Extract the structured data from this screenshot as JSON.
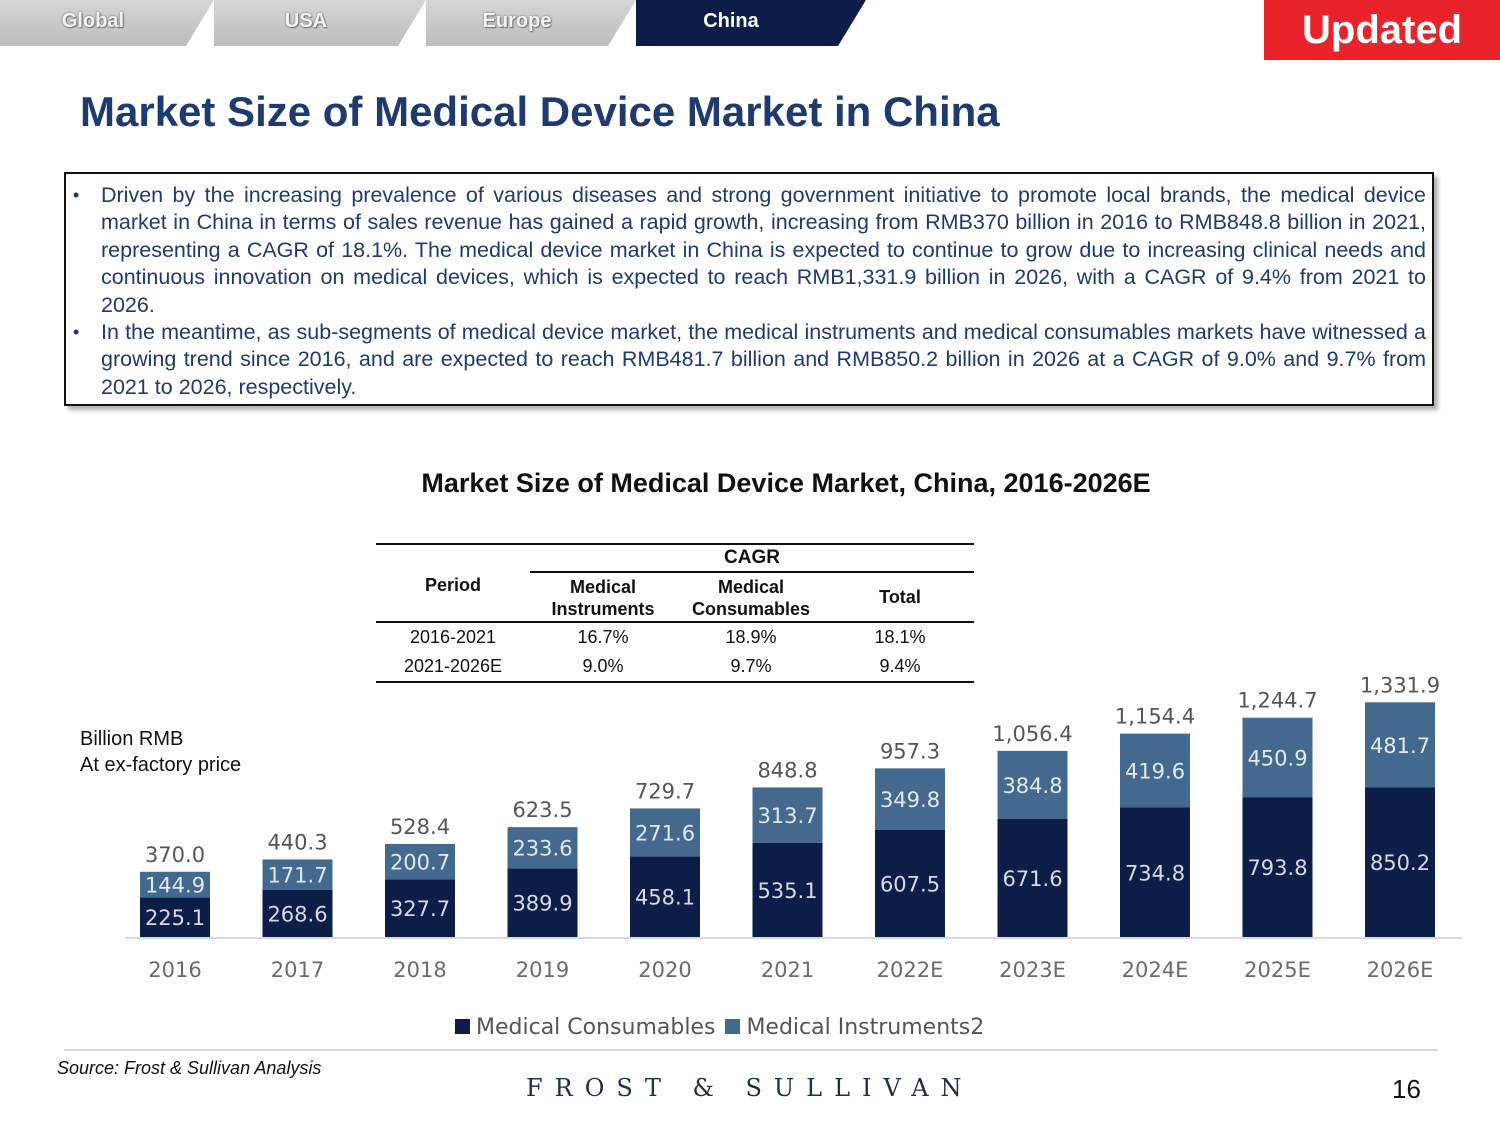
{
  "tabs": [
    {
      "label": "Global",
      "active": false
    },
    {
      "label": "USA",
      "active": false
    },
    {
      "label": "Europe",
      "active": false
    },
    {
      "label": "China",
      "active": true
    }
  ],
  "badge": "Updated",
  "title": "Market Size of Medical Device Market in China",
  "bullets": [
    "Driven by the increasing prevalence of various diseases and strong government initiative to promote local brands, the medical device market in China in terms of sales revenue has gained a rapid growth, increasing from RMB370 billion in 2016 to RMB848.8 billion in 2021, representing a CAGR of 18.1%. The medical device market in China is expected to continue to grow due to increasing clinical needs and continuous innovation on medical devices, which is expected to reach RMB1,331.9 billion in 2026, with a CAGR of 9.4% from 2021 to 2026.",
    "In the meantime, as sub-segments of medical device market, the medical instruments and medical consumables markets have witnessed a growing trend since 2016, and are expected to reach RMB481.7 billion and RMB850.2 billion in 2026 at a CAGR of 9.0% and 9.7% from 2021 to 2026, respectively."
  ],
  "cagr_table": {
    "group_header": "CAGR",
    "col_period": "Period",
    "col_instruments": "Medical Instruments",
    "col_consumables": "Medical Consumables",
    "col_total": "Total",
    "rows": [
      {
        "period": "2016-2021",
        "instruments": "16.7%",
        "consumables": "18.9%",
        "total": "18.1%"
      },
      {
        "period": "2021-2026E",
        "instruments": "9.0%",
        "consumables": "9.7%",
        "total": "9.4%"
      }
    ]
  },
  "unit_label": {
    "line1": "Billion RMB",
    "line2": "At ex-factory price"
  },
  "chart_data": {
    "type": "bar",
    "stacked": true,
    "title": "Market Size of Medical Device Market, China, 2016-2026E",
    "xlabel": "",
    "ylabel": "Billion RMB",
    "categories": [
      "2016",
      "2017",
      "2018",
      "2019",
      "2020",
      "2021",
      "2022E",
      "2023E",
      "2024E",
      "2025E",
      "2026E"
    ],
    "series": [
      {
        "name": "Medical Consumables",
        "color": "#0c1d48",
        "values": [
          225.1,
          268.6,
          327.7,
          389.9,
          458.1,
          535.1,
          607.5,
          671.6,
          734.8,
          793.8,
          850.2
        ]
      },
      {
        "name": "Medical Instruments2",
        "color": "#44698f",
        "values": [
          144.9,
          171.7,
          200.7,
          233.6,
          271.6,
          313.7,
          349.8,
          384.8,
          419.6,
          450.9,
          481.7
        ]
      }
    ],
    "totals": [
      "370.0",
      "440.3",
      "528.4",
      "623.5",
      "729.7",
      "848.8",
      "957.3",
      "1,056.4",
      "1,154.4",
      "1,244.7",
      "1,331.9"
    ],
    "legend_position": "bottom",
    "grid": false
  },
  "source": "Source: Frost & Sullivan Analysis",
  "brand": "FROST & SULLIVAN",
  "page_number": "16"
}
